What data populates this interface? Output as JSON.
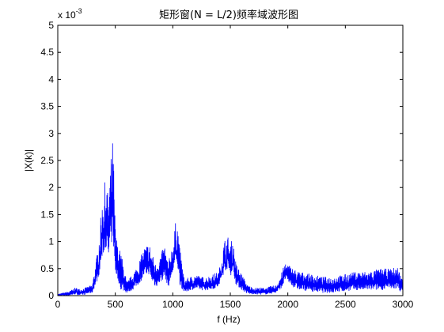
{
  "chart_data": {
    "type": "line",
    "title": "矩形窗(N = L/2)频率域波形图",
    "xlabel": "f (Hz)",
    "ylabel": "|X(k)|",
    "y_multiplier": {
      "base": "x 10",
      "exponent": "-3"
    },
    "xlim": [
      0,
      3000
    ],
    "ylim": [
      0,
      5
    ],
    "x_ticks": [
      0,
      500,
      1000,
      1500,
      2000,
      2500,
      3000
    ],
    "y_ticks": [
      0,
      0.5,
      1,
      1.5,
      2,
      2.5,
      3,
      3.5,
      4,
      4.5,
      5
    ],
    "x_tick_labels": [
      "0",
      "500",
      "1000",
      "1500",
      "2000",
      "2500",
      "3000"
    ],
    "y_tick_labels": [
      "0",
      "0.5",
      "1",
      "1.5",
      "2",
      "2.5",
      "3",
      "3.5",
      "4",
      "4.5",
      "5"
    ],
    "grid": false,
    "series_color": "#0000ff",
    "envelope": {
      "x": [
        0,
        100,
        150,
        200,
        300,
        350,
        380,
        400,
        420,
        440,
        460,
        480,
        500,
        520,
        550,
        600,
        650,
        700,
        750,
        790,
        800,
        820,
        850,
        900,
        930,
        960,
        1000,
        1030,
        1040,
        1060,
        1100,
        1150,
        1200,
        1250,
        1300,
        1350,
        1400,
        1450,
        1480,
        1500,
        1520,
        1550,
        1600,
        1650,
        1700,
        1800,
        1900,
        1950,
        1980,
        2000,
        2050,
        2100,
        2200,
        2300,
        2400,
        2500,
        2600,
        2700,
        2800,
        2900,
        2950,
        3000
      ],
      "ymax": [
        0.03,
        0.08,
        0.15,
        0.12,
        0.2,
        0.9,
        1.6,
        2.0,
        2.2,
        1.8,
        2.5,
        2.95,
        1.3,
        0.95,
        0.8,
        0.25,
        0.4,
        0.6,
        0.9,
        1.0,
        0.95,
        0.8,
        0.6,
        0.8,
        0.95,
        0.6,
        1.0,
        1.45,
        1.4,
        0.9,
        0.3,
        0.35,
        0.4,
        0.35,
        0.35,
        0.4,
        0.45,
        1.05,
        1.1,
        0.95,
        1.08,
        0.6,
        0.4,
        0.2,
        0.15,
        0.15,
        0.2,
        0.45,
        0.65,
        0.6,
        0.5,
        0.45,
        0.4,
        0.35,
        0.35,
        0.4,
        0.45,
        0.45,
        0.5,
        0.5,
        0.55,
        0.3
      ],
      "ymin": [
        0.0,
        0.0,
        0.02,
        0.0,
        0.05,
        0.3,
        0.6,
        0.8,
        0.9,
        0.6,
        0.9,
        1.0,
        0.4,
        0.3,
        0.1,
        0.05,
        0.1,
        0.2,
        0.35,
        0.4,
        0.35,
        0.25,
        0.15,
        0.25,
        0.35,
        0.15,
        0.4,
        0.6,
        0.55,
        0.2,
        0.05,
        0.1,
        0.12,
        0.1,
        0.1,
        0.12,
        0.15,
        0.45,
        0.5,
        0.35,
        0.45,
        0.2,
        0.1,
        0.03,
        0.02,
        0.02,
        0.05,
        0.15,
        0.3,
        0.25,
        0.15,
        0.1,
        0.08,
        0.05,
        0.05,
        0.08,
        0.1,
        0.1,
        0.1,
        0.12,
        0.12,
        0.05
      ]
    }
  }
}
